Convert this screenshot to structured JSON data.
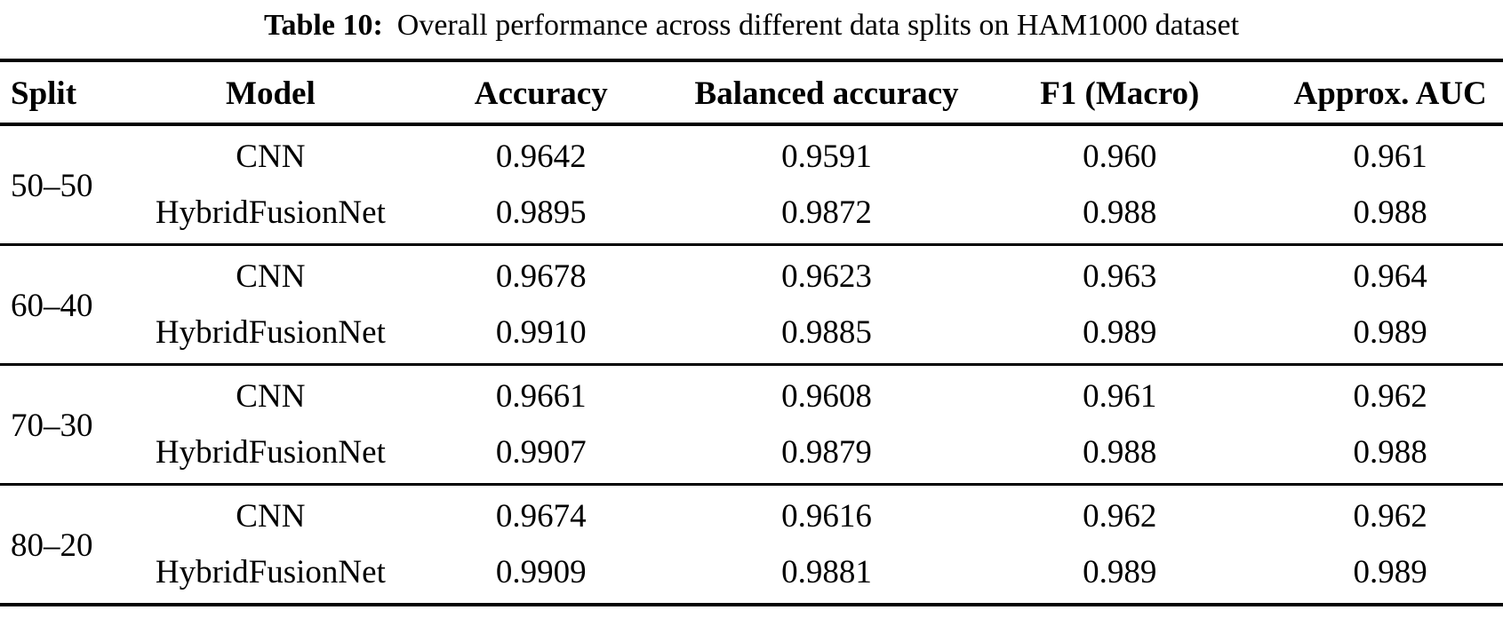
{
  "caption": {
    "label": "Table 10:",
    "text": "Overall performance across different data splits on HAM1000 dataset"
  },
  "table": {
    "headers": [
      "Split",
      "Model",
      "Accuracy",
      "Balanced accuracy",
      "F1 (Macro)",
      "Approx. AUC"
    ],
    "sections": [
      {
        "split": "50–50",
        "rows": [
          {
            "model": "CNN",
            "accuracy": "0.9642",
            "balanced_accuracy": "0.9591",
            "f1_macro": "0.960",
            "approx_auc": "0.961"
          },
          {
            "model": "HybridFusionNet",
            "accuracy": "0.9895",
            "balanced_accuracy": "0.9872",
            "f1_macro": "0.988",
            "approx_auc": "0.988"
          }
        ]
      },
      {
        "split": "60–40",
        "rows": [
          {
            "model": "CNN",
            "accuracy": "0.9678",
            "balanced_accuracy": "0.9623",
            "f1_macro": "0.963",
            "approx_auc": "0.964"
          },
          {
            "model": "HybridFusionNet",
            "accuracy": "0.9910",
            "balanced_accuracy": "0.9885",
            "f1_macro": "0.989",
            "approx_auc": "0.989"
          }
        ]
      },
      {
        "split": "70–30",
        "rows": [
          {
            "model": "CNN",
            "accuracy": "0.9661",
            "balanced_accuracy": "0.9608",
            "f1_macro": "0.961",
            "approx_auc": "0.962"
          },
          {
            "model": "HybridFusionNet",
            "accuracy": "0.9907",
            "balanced_accuracy": "0.9879",
            "f1_macro": "0.988",
            "approx_auc": "0.988"
          }
        ]
      },
      {
        "split": "80–20",
        "rows": [
          {
            "model": "CNN",
            "accuracy": "0.9674",
            "balanced_accuracy": "0.9616",
            "f1_macro": "0.962",
            "approx_auc": "0.962"
          },
          {
            "model": "HybridFusionNet",
            "accuracy": "0.9909",
            "balanced_accuracy": "0.9881",
            "f1_macro": "0.989",
            "approx_auc": "0.989"
          }
        ]
      }
    ]
  }
}
